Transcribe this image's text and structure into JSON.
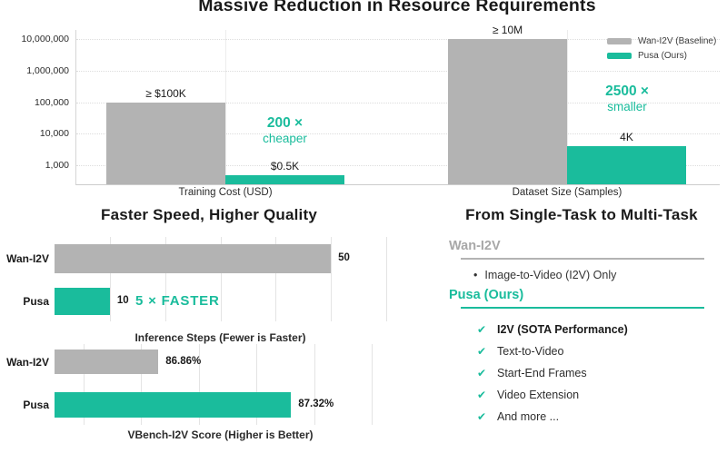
{
  "colors": {
    "accent": "#1abc9c",
    "baseline_gray": "#b3b3b3",
    "heading_gray": "#a8a8a8"
  },
  "chart_data": [
    {
      "type": "bar",
      "scale": "log-y",
      "title": "Massive Reduction in Resource Requirements",
      "categories": [
        "Training Cost (USD)",
        "Dataset Size (Samples)"
      ],
      "series": [
        {
          "name": "Wan-I2V (Baseline)",
          "color": "#b3b3b3",
          "values": [
            100000,
            10000000
          ],
          "labels": [
            "≥ $100K",
            "≥ 10M"
          ]
        },
        {
          "name": "Pusa (Ours)",
          "color": "#1abc9c",
          "values": [
            500,
            4000
          ],
          "labels": [
            "$0.5K",
            "4K"
          ]
        }
      ],
      "yticks": [
        {
          "value": 1000,
          "label": "1,000"
        },
        {
          "value": 10000,
          "label": "10,000"
        },
        {
          "value": 100000,
          "label": "100,000"
        },
        {
          "value": 1000000,
          "label": "1,000,000"
        },
        {
          "value": 10000000,
          "label": "10,000,000"
        }
      ],
      "ylim": [
        250,
        20000000
      ],
      "grid": "horizontal-dotted",
      "legend_position": "top-right",
      "annotations": [
        {
          "line1": "200 ×",
          "line2": "cheaper"
        },
        {
          "line1": "2500 ×",
          "line2": "smaller"
        }
      ]
    },
    {
      "type": "bar-horizontal",
      "caption": "Inference Steps (Fewer is Faster)",
      "categories": [
        "Wan-I2V",
        "Pusa"
      ],
      "values": [
        50,
        10
      ],
      "labels": [
        "50",
        "10"
      ],
      "colors": [
        "#b3b3b3",
        "#1abc9c"
      ],
      "xlim": [
        0,
        60
      ],
      "grid_ticks": [
        10,
        20,
        30,
        40,
        50,
        60
      ],
      "annotation": "5 ×  FASTER"
    },
    {
      "type": "bar-horizontal",
      "caption": "VBench-I2V Score (Higher is Better)",
      "categories": [
        "Wan-I2V",
        "Pusa"
      ],
      "values": [
        86.86,
        87.32
      ],
      "labels": [
        "86.86%",
        "87.32%"
      ],
      "colors": [
        "#b3b3b3",
        "#1abc9c"
      ],
      "xlim": [
        86.5,
        87.65
      ],
      "grid_ticks": [
        86.6,
        86.8,
        87.0,
        87.2,
        87.4,
        87.6
      ]
    }
  ],
  "sections": {
    "speed_quality_title": "Faster Speed, Higher Quality"
  },
  "multi_task": {
    "title": "From Single-Task to Multi-Task",
    "wan": {
      "heading": "Wan-I2V",
      "bullet": "•",
      "items": [
        "Image-to-Video (I2V) Only"
      ]
    },
    "pusa": {
      "heading": "Pusa (Ours)",
      "check": "✔",
      "items": [
        {
          "text": "I2V (SOTA Performance)",
          "bold": true
        },
        {
          "text": "Text-to-Video",
          "bold": false
        },
        {
          "text": "Start-End Frames",
          "bold": false
        },
        {
          "text": "Video Extension",
          "bold": false
        },
        {
          "text": "And more ...",
          "bold": false
        }
      ]
    }
  }
}
